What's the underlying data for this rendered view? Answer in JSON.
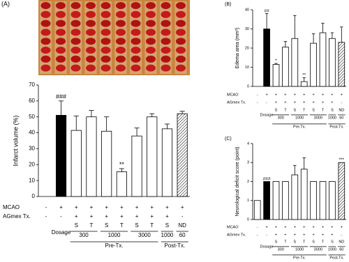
{
  "chart_data": [
    {
      "type": "bar",
      "panel_label": "(A)",
      "y_label": "Infarct volume (%)",
      "ylim": [
        0,
        70
      ],
      "yticks": [
        0,
        10,
        20,
        30,
        40,
        50,
        60,
        70
      ],
      "values": [
        null,
        51,
        41.5,
        50,
        41,
        15.5,
        38,
        50,
        42.5,
        52
      ],
      "errors": [
        null,
        9,
        9,
        4,
        9,
        2,
        5,
        2,
        3,
        1.5
      ],
      "bar_fills": [
        "white",
        "black",
        "white",
        "white",
        "white",
        "white",
        "white",
        "white",
        "white",
        "hatched"
      ],
      "annotations": [
        null,
        "###",
        null,
        null,
        null,
        "**",
        null,
        null,
        null,
        null
      ],
      "rows": [
        {
          "label": "MCAO",
          "cells": [
            "-",
            "+",
            "+",
            "+",
            "+",
            "+",
            "+",
            "+",
            "+",
            "+"
          ]
        },
        {
          "label": "AGmex Tx.",
          "cells": [
            "-",
            "-",
            "+",
            "+",
            "+",
            "+",
            "+",
            "+",
            "+",
            "-"
          ]
        },
        {
          "cells": [
            null,
            null,
            "S",
            "T",
            "S",
            "T",
            "S",
            "T",
            "S",
            "ND"
          ]
        }
      ],
      "dosage_label": "Dosage",
      "dose_groups": [
        {
          "label": "300",
          "columns": [
            2,
            3
          ]
        },
        {
          "label": "1000",
          "columns": [
            4,
            5
          ]
        },
        {
          "label": "3000",
          "columns": [
            6,
            7
          ]
        },
        {
          "label": "1000",
          "columns": [
            8
          ]
        },
        {
          "label": "60",
          "columns": [
            9
          ]
        }
      ],
      "tx_groups": [
        {
          "label": "Pre-Tx.",
          "columns": [
            2,
            7
          ]
        },
        {
          "label": "Post-Tx.",
          "columns": [
            8,
            9
          ]
        }
      ]
    },
    {
      "type": "bar",
      "panel_label": "(B)",
      "y_label": "Edema area (mm³)",
      "ylim": [
        0,
        40
      ],
      "yticks": [
        0,
        10,
        20,
        30,
        40
      ],
      "values": [
        null,
        30,
        11.5,
        20.5,
        25,
        2.5,
        22.5,
        28,
        25,
        23
      ],
      "errors": [
        null,
        8,
        0.5,
        3,
        12,
        2,
        5,
        5,
        3,
        8
      ],
      "bar_fills": [
        "white",
        "black",
        "white",
        "white",
        "white",
        "white",
        "white",
        "white",
        "white",
        "hatched"
      ],
      "annotations": [
        null,
        "##",
        "*",
        null,
        null,
        "**",
        null,
        null,
        null,
        null
      ],
      "rows": [
        {
          "label": "MCAO",
          "cells": [
            "-",
            "+",
            "+",
            "+",
            "+",
            "+",
            "+",
            "+",
            "+",
            "+"
          ]
        },
        {
          "label": "AGmex Tx.",
          "cells": [
            "-",
            "-",
            "+",
            "+",
            "+",
            "+",
            "+",
            "+",
            "+",
            "-"
          ]
        },
        {
          "cells": [
            null,
            null,
            "S",
            "T",
            "S",
            "T",
            "S",
            "T",
            "S",
            "ND"
          ]
        }
      ],
      "dosage_label": "Dosage",
      "dose_groups": [
        {
          "label": "300",
          "columns": [
            2,
            3
          ]
        },
        {
          "label": "1000",
          "columns": [
            4,
            5
          ]
        },
        {
          "label": "3000",
          "columns": [
            6,
            7
          ]
        },
        {
          "label": "1000",
          "columns": [
            8
          ]
        },
        {
          "label": "60",
          "columns": [
            9
          ]
        }
      ],
      "tx_groups": [
        {
          "label": "Pre-Tx.",
          "columns": [
            2,
            7
          ]
        },
        {
          "label": "Post-Tx.",
          "columns": [
            8,
            9
          ]
        }
      ]
    },
    {
      "type": "bar",
      "panel_label": "(C)",
      "y_label": "Neurological deficit score (point)",
      "ylim": [
        0,
        4
      ],
      "yticks": [
        0,
        1,
        2,
        3,
        4
      ],
      "values": [
        1,
        2,
        2,
        2,
        2.35,
        2.65,
        2,
        2,
        2,
        3
      ],
      "errors": [
        null,
        null,
        null,
        null,
        0.5,
        0.6,
        null,
        null,
        null,
        null
      ],
      "bar_fills": [
        "white",
        "black",
        "white",
        "white",
        "white",
        "white",
        "white",
        "white",
        "white",
        "hatched"
      ],
      "annotations": [
        null,
        "###",
        null,
        null,
        null,
        null,
        null,
        null,
        null,
        "***"
      ],
      "rows": [
        {
          "label": "MCAO",
          "cells": [
            "-",
            "+",
            "+",
            "+",
            "+",
            "+",
            "+",
            "+",
            "+",
            "+"
          ]
        },
        {
          "label": "AGmex Tx.",
          "cells": [
            "-",
            "-",
            "+",
            "+",
            "+",
            "+",
            "+",
            "+",
            "+",
            "-"
          ]
        },
        {
          "cells": [
            null,
            null,
            "S",
            "T",
            "S",
            "T",
            "S",
            "T",
            "S",
            "ND"
          ]
        }
      ],
      "dosage_label": "Dosage",
      "dose_groups": [
        {
          "label": "300",
          "columns": [
            2,
            3
          ]
        },
        {
          "label": "1000",
          "columns": [
            4,
            5
          ]
        },
        {
          "label": "3000",
          "columns": [
            6,
            7
          ]
        },
        {
          "label": "1000",
          "columns": [
            8
          ]
        },
        {
          "label": "60",
          "columns": [
            9
          ]
        }
      ],
      "tx_groups": [
        {
          "label": "Pre-Tx.",
          "columns": [
            2,
            7
          ]
        },
        {
          "label": "Post-Tx.",
          "columns": [
            8,
            9
          ]
        }
      ]
    }
  ]
}
